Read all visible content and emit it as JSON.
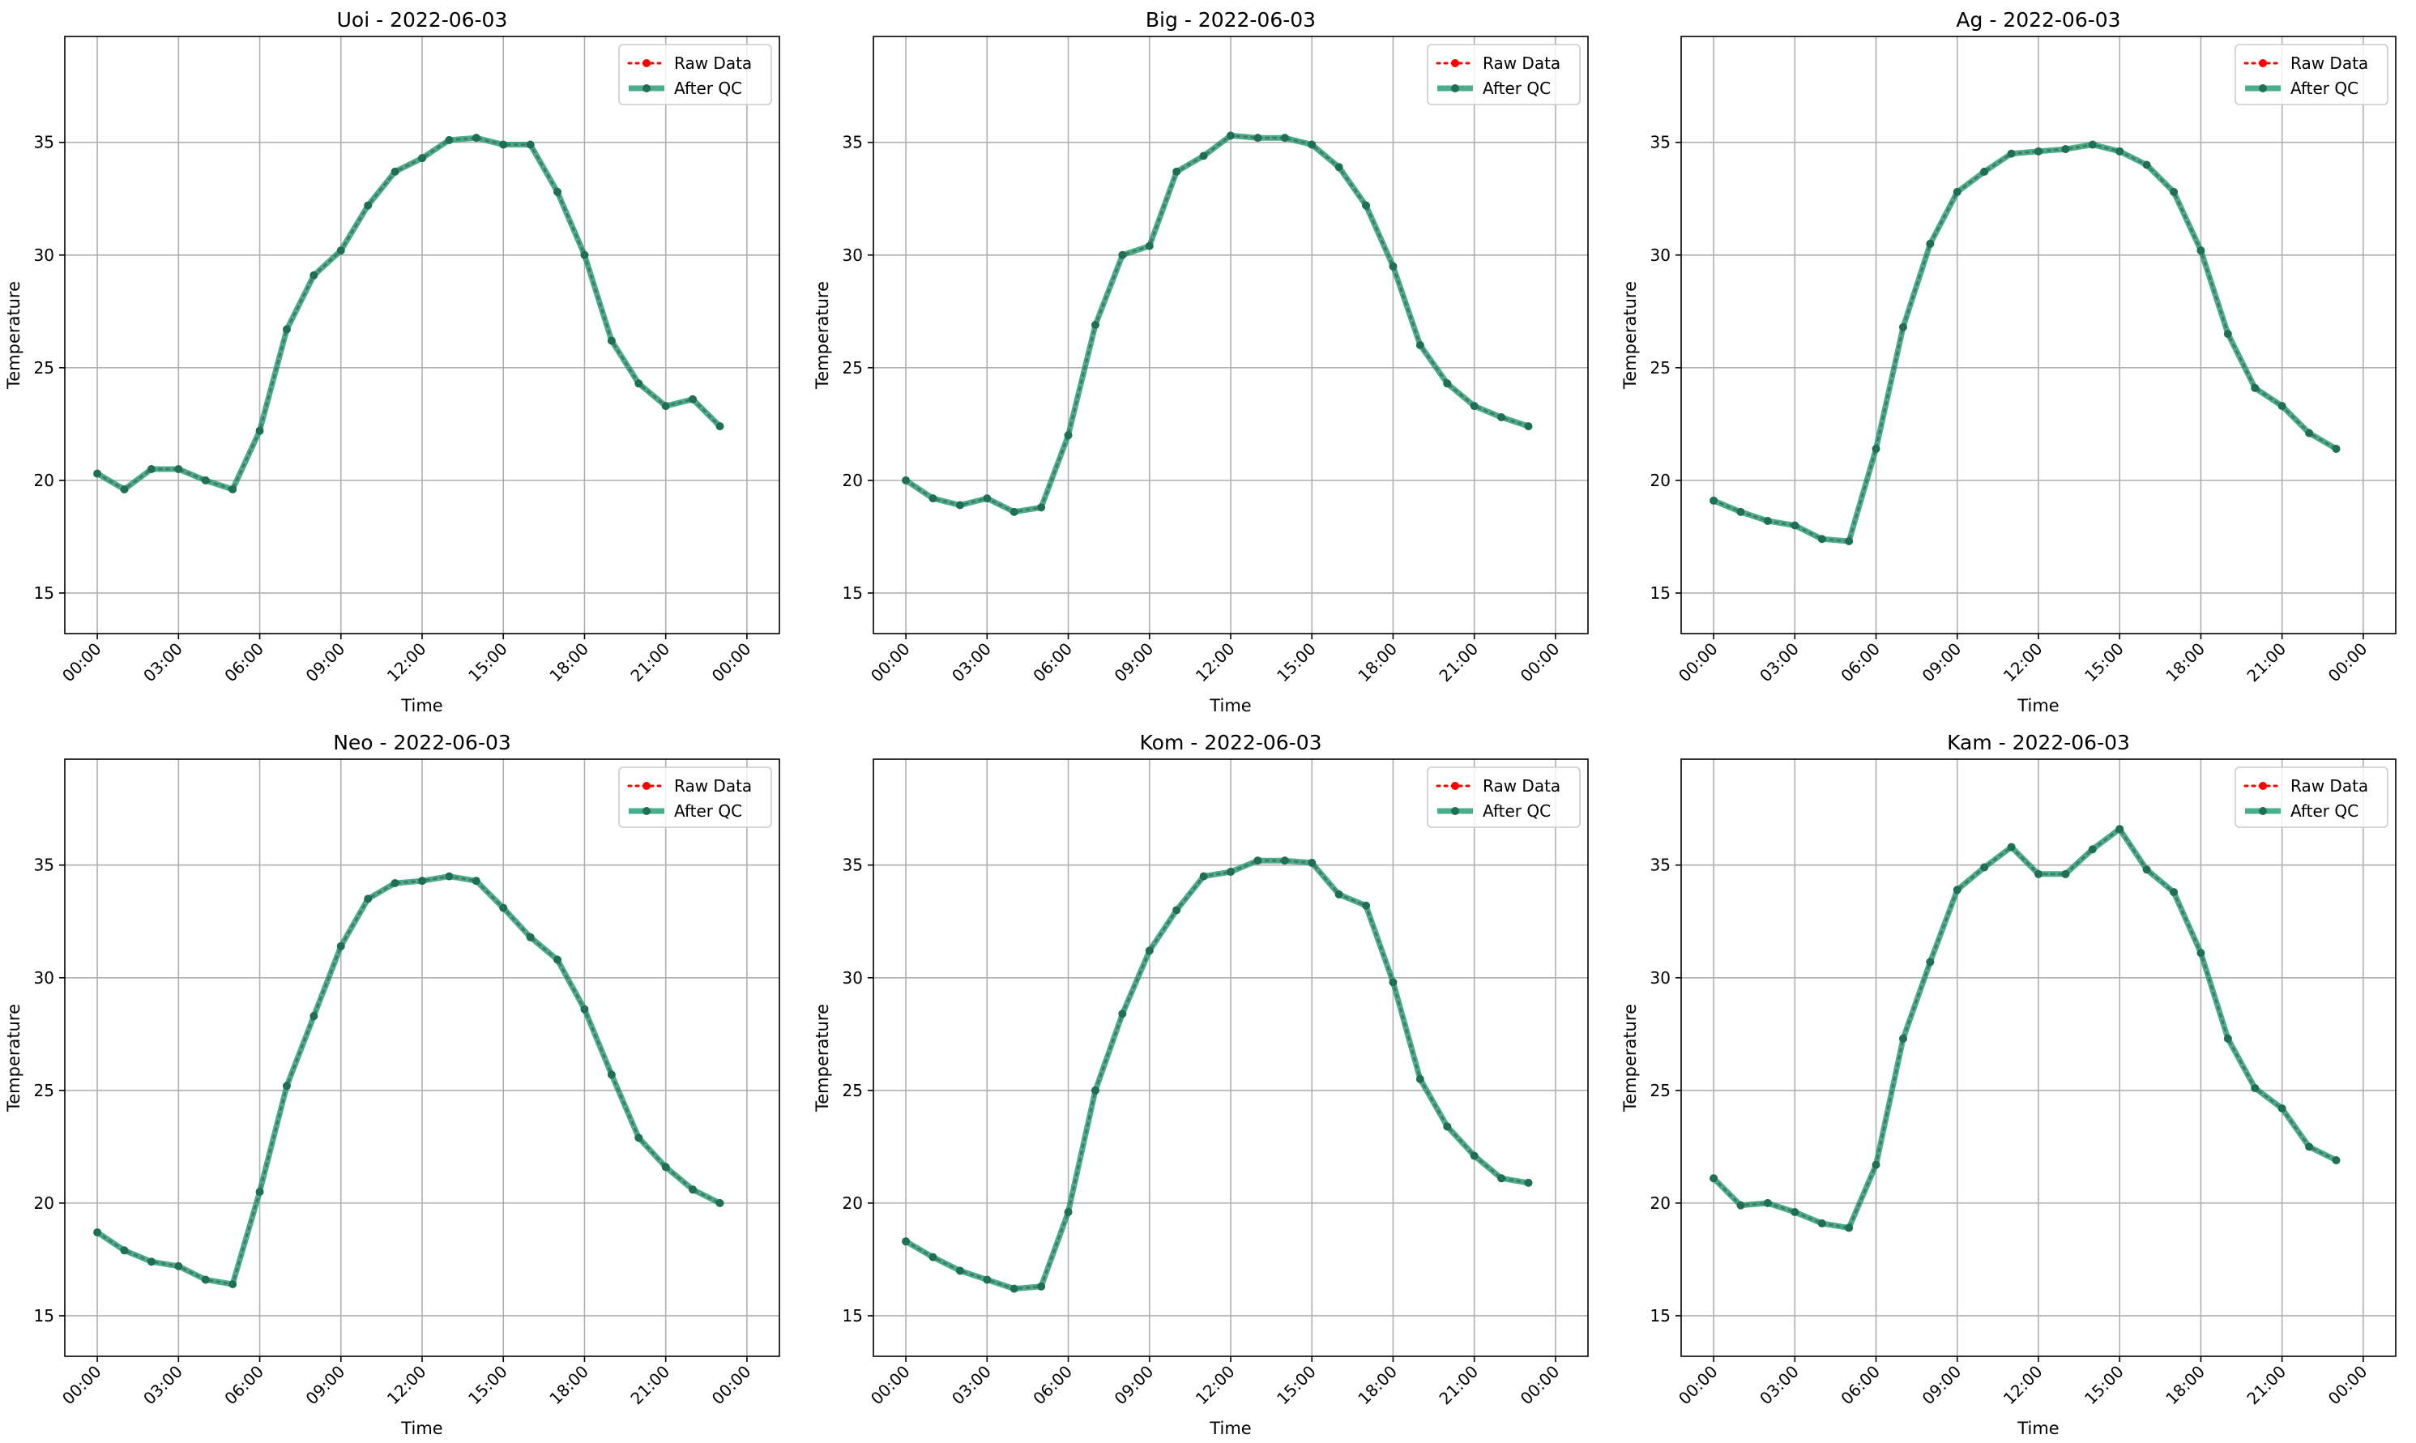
{
  "figure": {
    "xlabel": "Time",
    "ylabel": "Temperature",
    "x_tick_labels": [
      "00:00",
      "03:00",
      "06:00",
      "09:00",
      "12:00",
      "15:00",
      "18:00",
      "21:00",
      "00:00"
    ],
    "y_ticks": [
      15,
      20,
      25,
      30,
      35
    ],
    "legend": [
      {
        "label": "Raw Data",
        "color": "#ff0000",
        "style": "dotted-line-with-markers"
      },
      {
        "label": "After QC",
        "color": "#1a9a72",
        "style": "solid-line-with-markers"
      }
    ]
  },
  "chart_data": [
    {
      "type": "line",
      "title": "Uoi - 2022-06-03",
      "xlabel": "Time",
      "ylabel": "Temperature",
      "x": [
        "00:00",
        "01:00",
        "02:00",
        "03:00",
        "04:00",
        "05:00",
        "06:00",
        "07:00",
        "08:00",
        "09:00",
        "10:00",
        "11:00",
        "12:00",
        "13:00",
        "14:00",
        "15:00",
        "16:00",
        "17:00",
        "18:00",
        "19:00",
        "20:00",
        "21:00",
        "22:00",
        "23:00"
      ],
      "xlim": [
        "2022-06-03 00:00",
        "2022-06-04 00:00"
      ],
      "ylim": [
        13.2,
        39.7
      ],
      "grid": true,
      "legend_position": "top-right",
      "series": [
        {
          "name": "Raw Data",
          "values": [
            20.3,
            19.6,
            20.5,
            20.5,
            20.0,
            19.6,
            22.2,
            26.7,
            29.1,
            30.2,
            32.2,
            33.7,
            34.3,
            35.1,
            35.2,
            34.9,
            34.9,
            32.8,
            30.0,
            26.2,
            24.3,
            23.3,
            23.6,
            22.4
          ]
        },
        {
          "name": "After QC",
          "values": [
            20.3,
            19.6,
            20.5,
            20.5,
            20.0,
            19.6,
            22.2,
            26.7,
            29.1,
            30.2,
            32.2,
            33.7,
            34.3,
            35.1,
            35.2,
            34.9,
            34.9,
            32.8,
            30.0,
            26.2,
            24.3,
            23.3,
            23.6,
            22.4
          ]
        }
      ]
    },
    {
      "type": "line",
      "title": "Big - 2022-06-03",
      "xlabel": "Time",
      "ylabel": "Temperature",
      "x": [
        "00:00",
        "01:00",
        "02:00",
        "03:00",
        "04:00",
        "05:00",
        "06:00",
        "07:00",
        "08:00",
        "09:00",
        "10:00",
        "11:00",
        "12:00",
        "13:00",
        "14:00",
        "15:00",
        "16:00",
        "17:00",
        "18:00",
        "19:00",
        "20:00",
        "21:00",
        "22:00",
        "23:00"
      ],
      "xlim": [
        "2022-06-03 00:00",
        "2022-06-04 00:00"
      ],
      "ylim": [
        13.2,
        39.7
      ],
      "grid": true,
      "legend_position": "top-right",
      "series": [
        {
          "name": "Raw Data",
          "values": [
            20.0,
            19.2,
            18.9,
            19.2,
            18.6,
            18.8,
            22.0,
            26.9,
            30.0,
            30.4,
            33.7,
            34.4,
            35.3,
            35.2,
            35.2,
            34.9,
            33.9,
            32.2,
            29.5,
            26.0,
            24.3,
            23.3,
            22.8,
            22.4
          ]
        },
        {
          "name": "After QC",
          "values": [
            20.0,
            19.2,
            18.9,
            19.2,
            18.6,
            18.8,
            22.0,
            26.9,
            30.0,
            30.4,
            33.7,
            34.4,
            35.3,
            35.2,
            35.2,
            34.9,
            33.9,
            32.2,
            29.5,
            26.0,
            24.3,
            23.3,
            22.8,
            22.4
          ]
        }
      ]
    },
    {
      "type": "line",
      "title": "Ag - 2022-06-03",
      "xlabel": "Time",
      "ylabel": "Temperature",
      "x": [
        "00:00",
        "01:00",
        "02:00",
        "03:00",
        "04:00",
        "05:00",
        "06:00",
        "07:00",
        "08:00",
        "09:00",
        "10:00",
        "11:00",
        "12:00",
        "13:00",
        "14:00",
        "15:00",
        "16:00",
        "17:00",
        "18:00",
        "19:00",
        "20:00",
        "21:00",
        "22:00",
        "23:00"
      ],
      "xlim": [
        "2022-06-03 00:00",
        "2022-06-04 00:00"
      ],
      "ylim": [
        13.2,
        39.7
      ],
      "grid": true,
      "legend_position": "top-right",
      "series": [
        {
          "name": "Raw Data",
          "values": [
            19.1,
            18.6,
            18.2,
            18.0,
            17.4,
            17.3,
            21.4,
            26.8,
            30.5,
            32.8,
            33.7,
            34.5,
            34.6,
            34.7,
            34.9,
            34.6,
            34.0,
            32.8,
            30.2,
            26.5,
            24.1,
            23.3,
            22.1,
            21.4
          ]
        },
        {
          "name": "After QC",
          "values": [
            19.1,
            18.6,
            18.2,
            18.0,
            17.4,
            17.3,
            21.4,
            26.8,
            30.5,
            32.8,
            33.7,
            34.5,
            34.6,
            34.7,
            34.9,
            34.6,
            34.0,
            32.8,
            30.2,
            26.5,
            24.1,
            23.3,
            22.1,
            21.4
          ]
        }
      ]
    },
    {
      "type": "line",
      "title": "Neo - 2022-06-03",
      "xlabel": "Time",
      "ylabel": "Temperature",
      "x": [
        "00:00",
        "01:00",
        "02:00",
        "03:00",
        "04:00",
        "05:00",
        "06:00",
        "07:00",
        "08:00",
        "09:00",
        "10:00",
        "11:00",
        "12:00",
        "13:00",
        "14:00",
        "15:00",
        "16:00",
        "17:00",
        "18:00",
        "19:00",
        "20:00",
        "21:00",
        "22:00",
        "23:00"
      ],
      "xlim": [
        "2022-06-03 00:00",
        "2022-06-04 00:00"
      ],
      "ylim": [
        13.2,
        39.7
      ],
      "grid": true,
      "legend_position": "top-right",
      "series": [
        {
          "name": "Raw Data",
          "values": [
            18.7,
            17.9,
            17.4,
            17.2,
            16.6,
            16.4,
            20.5,
            25.2,
            28.3,
            31.4,
            33.5,
            34.2,
            34.3,
            34.5,
            34.3,
            33.1,
            31.8,
            30.8,
            28.6,
            25.7,
            22.9,
            21.6,
            20.6,
            20.0
          ]
        },
        {
          "name": "After QC",
          "values": [
            18.7,
            17.9,
            17.4,
            17.2,
            16.6,
            16.4,
            20.5,
            25.2,
            28.3,
            31.4,
            33.5,
            34.2,
            34.3,
            34.5,
            34.3,
            33.1,
            31.8,
            30.8,
            28.6,
            25.7,
            22.9,
            21.6,
            20.6,
            20.0
          ]
        }
      ]
    },
    {
      "type": "line",
      "title": "Kom - 2022-06-03",
      "xlabel": "Time",
      "ylabel": "Temperature",
      "x": [
        "00:00",
        "01:00",
        "02:00",
        "03:00",
        "04:00",
        "05:00",
        "06:00",
        "07:00",
        "08:00",
        "09:00",
        "10:00",
        "11:00",
        "12:00",
        "13:00",
        "14:00",
        "15:00",
        "16:00",
        "17:00",
        "18:00",
        "19:00",
        "20:00",
        "21:00",
        "22:00",
        "23:00"
      ],
      "xlim": [
        "2022-06-03 00:00",
        "2022-06-04 00:00"
      ],
      "ylim": [
        13.2,
        39.7
      ],
      "grid": true,
      "legend_position": "top-right",
      "series": [
        {
          "name": "Raw Data",
          "values": [
            18.3,
            17.6,
            17.0,
            16.6,
            16.2,
            16.3,
            19.6,
            25.0,
            28.4,
            31.2,
            33.0,
            34.5,
            34.7,
            35.2,
            35.2,
            35.1,
            33.7,
            33.2,
            29.8,
            25.5,
            23.4,
            22.1,
            21.1,
            20.9
          ]
        },
        {
          "name": "After QC",
          "values": [
            18.3,
            17.6,
            17.0,
            16.6,
            16.2,
            16.3,
            19.6,
            25.0,
            28.4,
            31.2,
            33.0,
            34.5,
            34.7,
            35.2,
            35.2,
            35.1,
            33.7,
            33.2,
            29.8,
            25.5,
            23.4,
            22.1,
            21.1,
            20.9
          ]
        }
      ]
    },
    {
      "type": "line",
      "title": "Kam - 2022-06-03",
      "xlabel": "Time",
      "ylabel": "Temperature",
      "x": [
        "00:00",
        "01:00",
        "02:00",
        "03:00",
        "04:00",
        "05:00",
        "06:00",
        "07:00",
        "08:00",
        "09:00",
        "10:00",
        "11:00",
        "12:00",
        "13:00",
        "14:00",
        "15:00",
        "16:00",
        "17:00",
        "18:00",
        "19:00",
        "20:00",
        "21:00",
        "22:00",
        "23:00"
      ],
      "xlim": [
        "2022-06-03 00:00",
        "2022-06-04 00:00"
      ],
      "ylim": [
        13.2,
        39.7
      ],
      "grid": true,
      "legend_position": "top-right",
      "series": [
        {
          "name": "Raw Data",
          "values": [
            21.1,
            19.9,
            20.0,
            19.6,
            19.1,
            18.9,
            21.7,
            27.3,
            30.7,
            33.9,
            34.9,
            35.8,
            34.6,
            34.6,
            35.7,
            36.6,
            34.8,
            33.8,
            31.1,
            27.3,
            25.1,
            24.2,
            22.5,
            21.9
          ]
        },
        {
          "name": "After QC",
          "values": [
            21.1,
            19.9,
            20.0,
            19.6,
            19.1,
            18.9,
            21.7,
            27.3,
            30.7,
            33.9,
            34.9,
            35.8,
            34.6,
            34.6,
            35.7,
            36.6,
            34.8,
            33.8,
            31.1,
            27.3,
            25.1,
            24.2,
            22.5,
            21.9
          ]
        }
      ]
    }
  ]
}
